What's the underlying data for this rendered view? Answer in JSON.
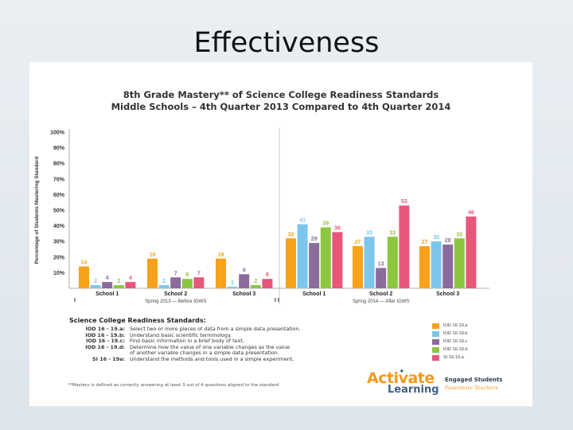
{
  "slide": {
    "title": "Effectiveness"
  },
  "chart_data": {
    "type": "bar",
    "title_line1": "8th Grade Mastery** of Science College Readiness Standards",
    "title_line2": "Middle Schools – 4th Quarter 2013 Compared to 4th Quarter 2014",
    "ylabel": "Percentage of Students Mastering Standard",
    "ylim": [
      0,
      100
    ],
    "yticks": [
      "10%",
      "20%",
      "30%",
      "40%",
      "50%",
      "60%",
      "70%",
      "80%",
      "90%",
      "100%"
    ],
    "series_names": [
      "IOD 16-19.a",
      "IOD 16-19.b",
      "IOD 16-19.c",
      "IOD 16-19.d",
      "SI 16-19.a"
    ],
    "colors": [
      "#f7a21b",
      "#7cc6ee",
      "#8b6a9c",
      "#8cc63f",
      "#e8567a"
    ],
    "groups": [
      {
        "label": "Spring 2013 — Before IGWS",
        "edge_marker": "I",
        "schools": [
          {
            "name": "School 1",
            "values": [
              14,
              2,
              4,
              2,
              4
            ]
          },
          {
            "name": "School 2",
            "values": [
              19,
              2,
              7,
              6,
              7
            ]
          },
          {
            "name": "School 3",
            "values": [
              19,
              1,
              9,
              2,
              6
            ]
          }
        ]
      },
      {
        "label": "Spring 2014 — After IGWS",
        "edge_marker": "I I",
        "schools": [
          {
            "name": "School 1",
            "values": [
              32,
              41,
              29,
              39,
              36
            ]
          },
          {
            "name": "School 2",
            "values": [
              27,
              33,
              13,
              33,
              53
            ]
          },
          {
            "name": "School 3",
            "values": [
              27,
              30,
              28,
              32,
              46
            ]
          }
        ]
      }
    ]
  },
  "standards": {
    "title": "Science College Readiness Standards:",
    "items": [
      {
        "code": "IOD 16 - 19.a:",
        "desc": "Select two or more pieces of data from a simple data presentation."
      },
      {
        "code": "IOD 16 - 19.b:",
        "desc": "Understand basic scientific terminology."
      },
      {
        "code": "IOD 16 - 19.c:",
        "desc": "Find basic information in a brief body of text."
      },
      {
        "code": "IOD 16 - 19.d:",
        "desc": "Determine how the value of one variable changes as the value"
      },
      {
        "code": "",
        "desc": "of another variable changes in a simple data presentation."
      },
      {
        "code": "SI 16 - 19a:",
        "desc": "Understand the methods and tools used in a simple experiment."
      }
    ]
  },
  "legend": [
    "IOD 16-19.a",
    "IOD 16-19.b",
    "IOD 16-19.c",
    "IOD 16-19.d",
    "SI 16-19.a"
  ],
  "footnote": "**Mastery is defined as correctly answering at least 3 out of 4 questions aligned to the standard",
  "logo": {
    "word1": "Activate",
    "word2": "Learning",
    "tagline1": "Engaged Students",
    "tagline2": "Passionate Teachers"
  }
}
